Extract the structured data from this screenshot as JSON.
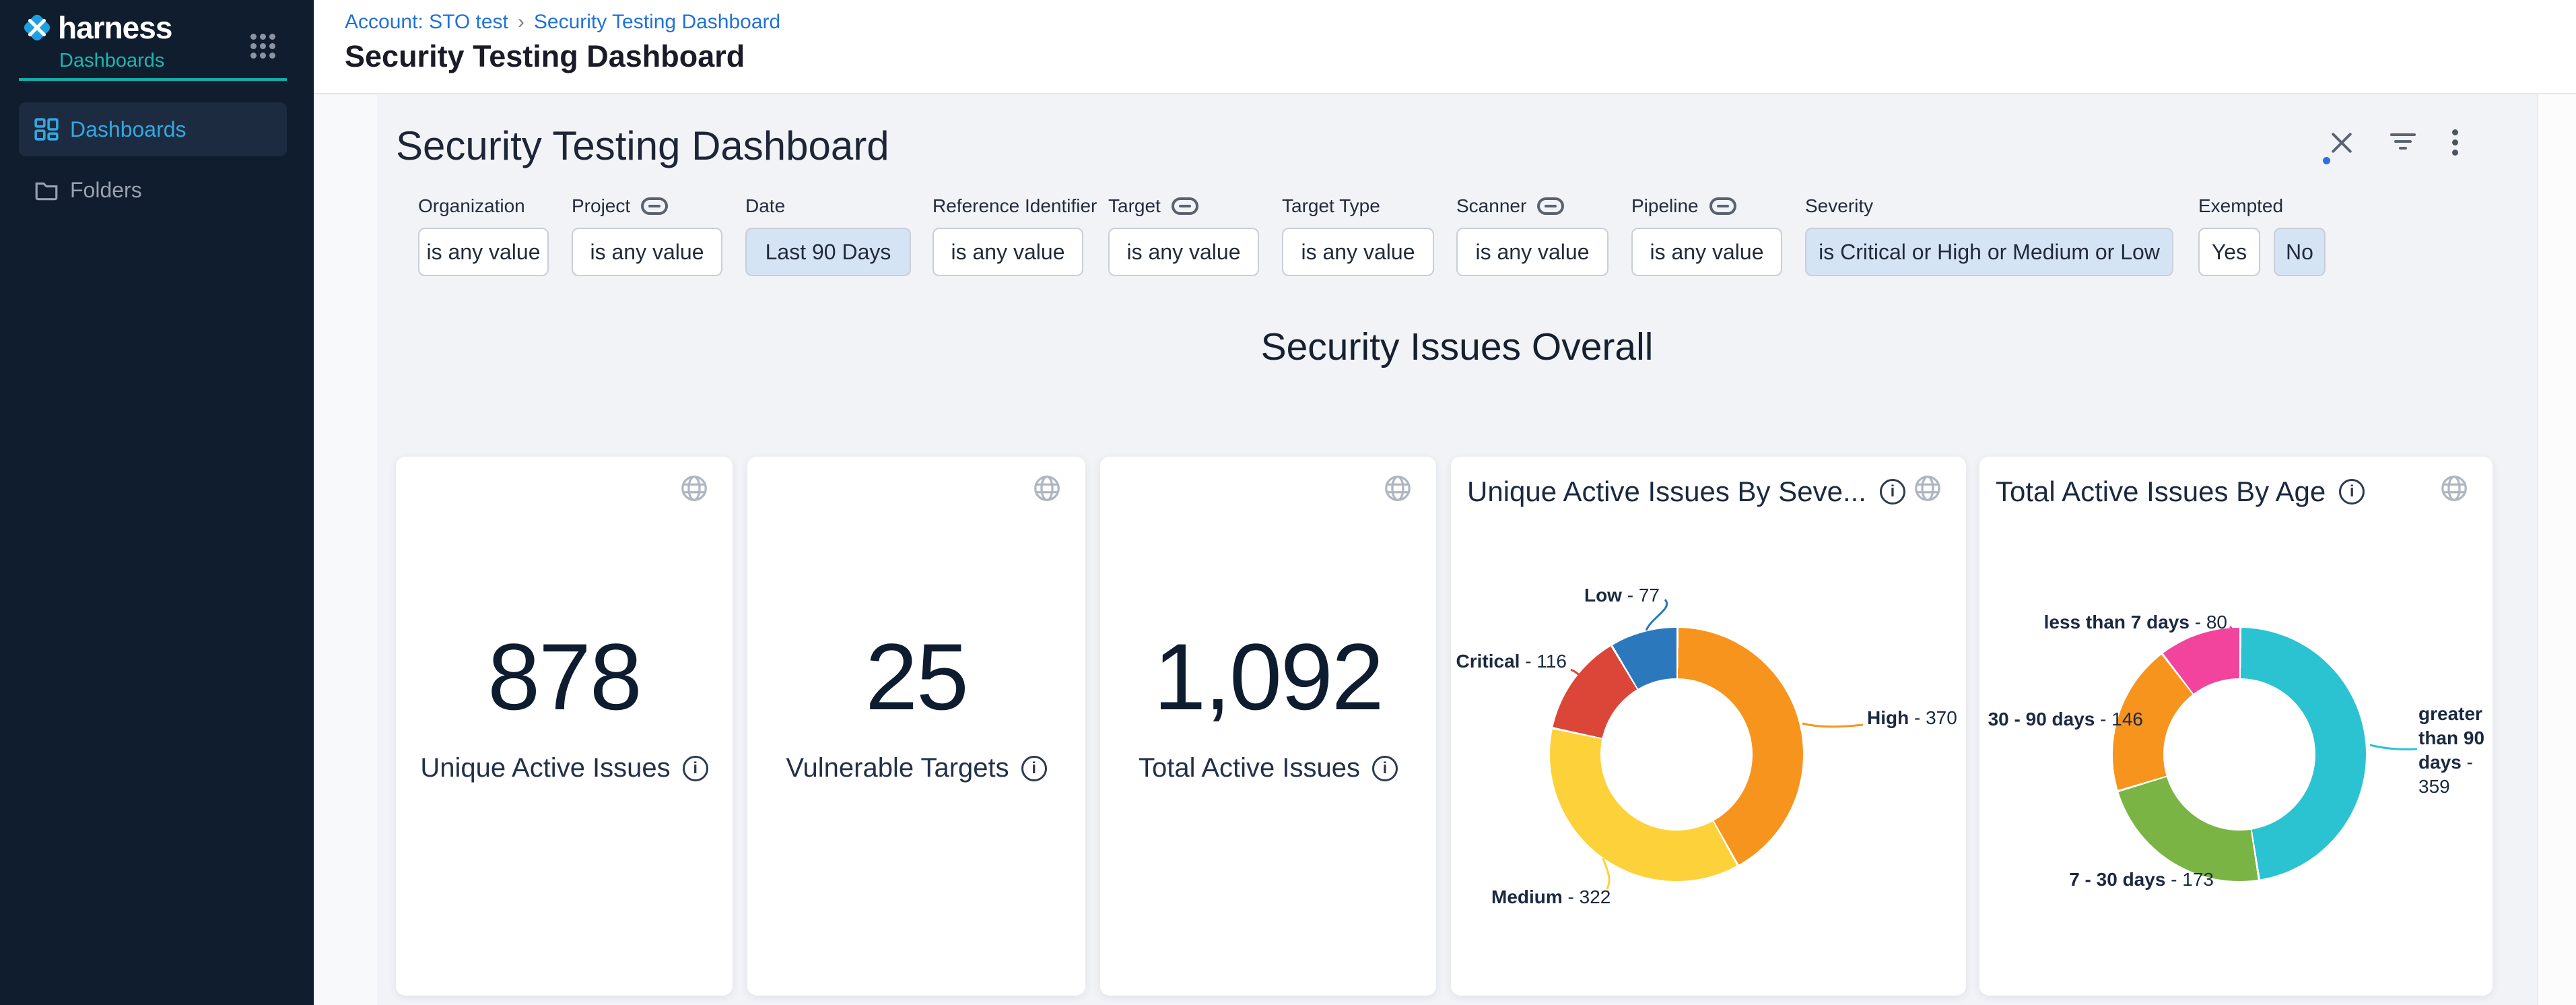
{
  "app": {
    "name": "Harness Dashboards"
  },
  "colors": {
    "sidebar_bg": "#101D2E",
    "sidebar_active_bg": "#1C2B3F",
    "sidebar_active_text": "#35A7E1",
    "brand_blue": "#1BA0E2",
    "teal_accent": "#12AEA9",
    "link_blue": "#1F72D8",
    "page_bg": "#F1F3F7",
    "filter_highlight_bg": "#D5E4F4",
    "severity_high": "#F7941E",
    "severity_medium": "#FDD13A",
    "severity_critical": "#DC4638",
    "severity_low": "#2C78BC",
    "age_gt90": "#2BC3D2",
    "age_7_30": "#7AB444",
    "age_30_90": "#F7941E",
    "age_lt7": "#F2449C"
  },
  "icons": {
    "logo": "harness-diamond",
    "apps": "grid-3x3-dots",
    "nav_dashboards": "dashboard-grid",
    "nav_folders": "folder",
    "breadcrumb_sep": "›",
    "close": "x",
    "filter": "filter-lines",
    "more": "kebab-vertical-dots",
    "tile_explore": "globe",
    "info": "circled-i",
    "linked_filter": "chain-link"
  },
  "sidebar": {
    "brand": "harness",
    "product": "Dashboards",
    "items": [
      {
        "label": "Dashboards"
      },
      {
        "label": "Folders"
      }
    ]
  },
  "header": {
    "breadcrumb": [
      "Account: STO test",
      "Security Testing Dashboard"
    ],
    "separator": "›",
    "title": "Security Testing Dashboard"
  },
  "dashboard": {
    "title": "Security Testing Dashboard",
    "section_title": "Security Issues Overall",
    "filters": [
      {
        "label": "Organization",
        "value": "is any value"
      },
      {
        "label": "Project",
        "value": "is any value",
        "linked": true
      },
      {
        "label": "Date",
        "value": "Last 90 Days",
        "highlight": true
      },
      {
        "label": "Reference Identifier",
        "value": "is any value"
      },
      {
        "label": "Target",
        "value": "is any value",
        "linked": true
      },
      {
        "label": "Target Type",
        "value": "is any value"
      },
      {
        "label": "Scanner",
        "value": "is any value",
        "linked": true
      },
      {
        "label": "Pipeline",
        "value": "is any value",
        "linked": true
      },
      {
        "label": "Severity",
        "value": "is Critical or High or Medium or Low",
        "highlight": true
      },
      {
        "label": "Exempted",
        "options": [
          "Yes",
          "No"
        ],
        "selected": "No"
      }
    ]
  },
  "chart_data": [
    {
      "type": "single_value",
      "title": "Unique Active Issues",
      "value": 878,
      "display": "878"
    },
    {
      "type": "single_value",
      "title": "Vulnerable Targets",
      "value": 25,
      "display": "25"
    },
    {
      "type": "single_value",
      "title": "Total Active Issues",
      "value": 1092,
      "display": "1,092"
    },
    {
      "type": "pie",
      "donut": true,
      "title": "Unique Active Issues By Seve...",
      "start_angle_deg": 0,
      "direction": "clockwise",
      "label_style": "outside-callout",
      "series": [
        {
          "name": "High",
          "value": 370,
          "color": "#F7941E"
        },
        {
          "name": "Medium",
          "value": 322,
          "color": "#FDD13A"
        },
        {
          "name": "Critical",
          "value": 116,
          "color": "#DC4638"
        },
        {
          "name": "Low",
          "value": 77,
          "color": "#2C78BC"
        }
      ]
    },
    {
      "type": "pie",
      "donut": true,
      "title": "Total Active Issues By Age",
      "start_angle_deg": 0,
      "direction": "clockwise",
      "label_style": "outside-callout",
      "series": [
        {
          "name": "greater than 90 days",
          "value": 359,
          "color": "#2BC3D2"
        },
        {
          "name": "7 - 30 days",
          "value": 173,
          "color": "#7AB444"
        },
        {
          "name": "30 - 90 days",
          "value": 146,
          "color": "#F7941E"
        },
        {
          "name": "less than 7 days",
          "value": 80,
          "color": "#F2449C"
        }
      ]
    }
  ]
}
